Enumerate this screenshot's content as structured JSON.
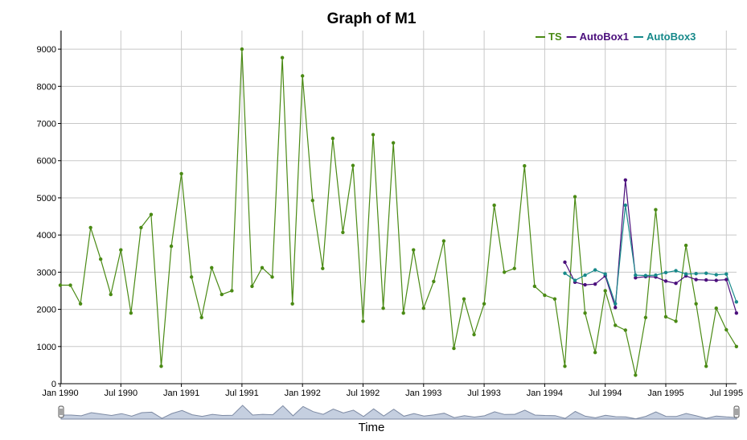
{
  "chart_data": {
    "type": "line",
    "title": "Graph of M1",
    "xlabel": "Time",
    "ylabel": "",
    "ylim": [
      0,
      9500
    ],
    "yticks": [
      0,
      1000,
      2000,
      3000,
      4000,
      5000,
      6000,
      7000,
      8000,
      9000
    ],
    "xlim": [
      "1990-01",
      "1995-09"
    ],
    "xticks": [
      "Jan 1990",
      "Jul 1990",
      "Jan 1991",
      "Jul 1991",
      "Jan 1992",
      "Jul 1992",
      "Jan 1993",
      "Jul 1993",
      "Jan 1994",
      "Jul 1994",
      "Jan 1995",
      "Jul 1995"
    ],
    "grid": true,
    "legend_position": "top-right",
    "series": [
      {
        "name": "TS",
        "color": "#4a8a14",
        "x": [
          "1990-01",
          "1990-02",
          "1990-03",
          "1990-04",
          "1990-05",
          "1990-06",
          "1990-07",
          "1990-08",
          "1990-09",
          "1990-10",
          "1990-11",
          "1990-12",
          "1991-01",
          "1991-02",
          "1991-03",
          "1991-04",
          "1991-05",
          "1991-06",
          "1991-07",
          "1991-08",
          "1991-09",
          "1991-10",
          "1991-11",
          "1991-12",
          "1992-01",
          "1992-02",
          "1992-03",
          "1992-04",
          "1992-05",
          "1992-06",
          "1992-07",
          "1992-08",
          "1992-09",
          "1992-10",
          "1992-11",
          "1992-12",
          "1993-01",
          "1993-02",
          "1993-03",
          "1993-04",
          "1993-05",
          "1993-06",
          "1993-07",
          "1993-08",
          "1993-09",
          "1993-10",
          "1993-11",
          "1993-12",
          "1994-01",
          "1994-02",
          "1994-03",
          "1994-04",
          "1994-05",
          "1994-06",
          "1994-07",
          "1994-08",
          "1994-09",
          "1994-10",
          "1994-11",
          "1994-12",
          "1995-01",
          "1995-02",
          "1995-03",
          "1995-04",
          "1995-05",
          "1995-06",
          "1995-07",
          "1995-08"
        ],
        "values": [
          2650,
          2650,
          2150,
          4200,
          3350,
          2400,
          3600,
          1900,
          4200,
          4550,
          470,
          3700,
          5650,
          2870,
          1780,
          3120,
          2400,
          2500,
          9000,
          2620,
          3120,
          2870,
          8770,
          2150,
          8280,
          4930,
          3100,
          6600,
          4070,
          5870,
          1680,
          6700,
          2030,
          6480,
          1900,
          3600,
          2030,
          2750,
          3840,
          950,
          2280,
          1320,
          2150,
          4800,
          3000,
          3100,
          5860,
          2620,
          2380,
          2280,
          470,
          5030,
          1900,
          840,
          2500,
          1570,
          1440,
          230,
          1780,
          4680,
          1800,
          1680,
          3720,
          2150,
          470,
          2030,
          1450,
          1000
        ]
      },
      {
        "name": "AutoBox1",
        "color": "#4b0f7c",
        "x": [
          "1994-03",
          "1994-04",
          "1994-05",
          "1994-06",
          "1994-07",
          "1994-08",
          "1994-09",
          "1994-10",
          "1994-11",
          "1994-12",
          "1995-01",
          "1995-02",
          "1995-03",
          "1995-04",
          "1995-05",
          "1995-06",
          "1995-07",
          "1995-08"
        ],
        "values": [
          3270,
          2730,
          2660,
          2680,
          2900,
          2050,
          5480,
          2850,
          2880,
          2870,
          2760,
          2700,
          2900,
          2800,
          2790,
          2780,
          2800,
          1900
        ]
      },
      {
        "name": "AutoBox3",
        "color": "#17898a",
        "x": [
          "1994-03",
          "1994-04",
          "1994-05",
          "1994-06",
          "1994-07",
          "1994-08",
          "1994-09",
          "1994-10",
          "1994-11",
          "1994-12",
          "1995-01",
          "1995-02",
          "1995-03",
          "1995-04",
          "1995-05",
          "1995-06",
          "1995-07",
          "1995-08"
        ],
        "values": [
          2970,
          2780,
          2920,
          3060,
          2950,
          2150,
          4800,
          2920,
          2910,
          2920,
          2990,
          3040,
          2950,
          2960,
          2970,
          2930,
          2950,
          2200
        ]
      }
    ]
  },
  "range_selector": {
    "fill_color": "#c5cfe0",
    "line_color": "#7d8aa3"
  }
}
